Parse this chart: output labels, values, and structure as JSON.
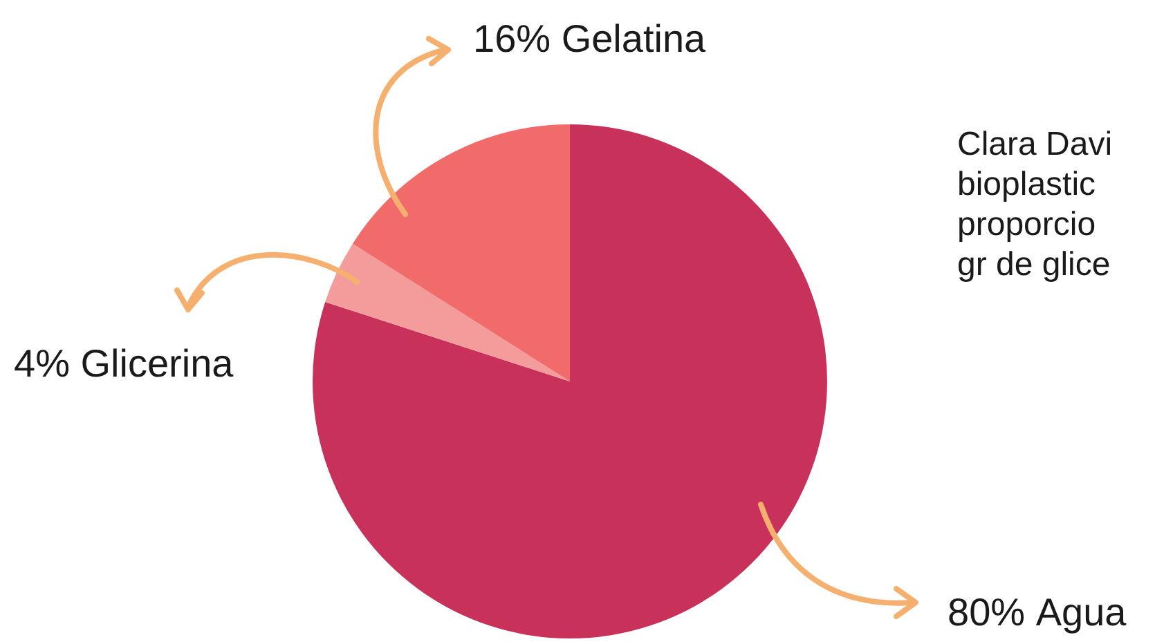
{
  "chart_data": {
    "type": "pie",
    "categories": [
      "Agua",
      "Glicerina",
      "Gelatina"
    ],
    "values": [
      80,
      4,
      16
    ],
    "colors": [
      "#c8325a",
      "#f49c9c",
      "#f26b6b"
    ],
    "value_labels": [
      "80%",
      "4%",
      "16%"
    ],
    "legend": false,
    "annotations": [
      "Clara Davi",
      "bioplastic",
      "proporcio",
      "gr de glice"
    ]
  }
}
